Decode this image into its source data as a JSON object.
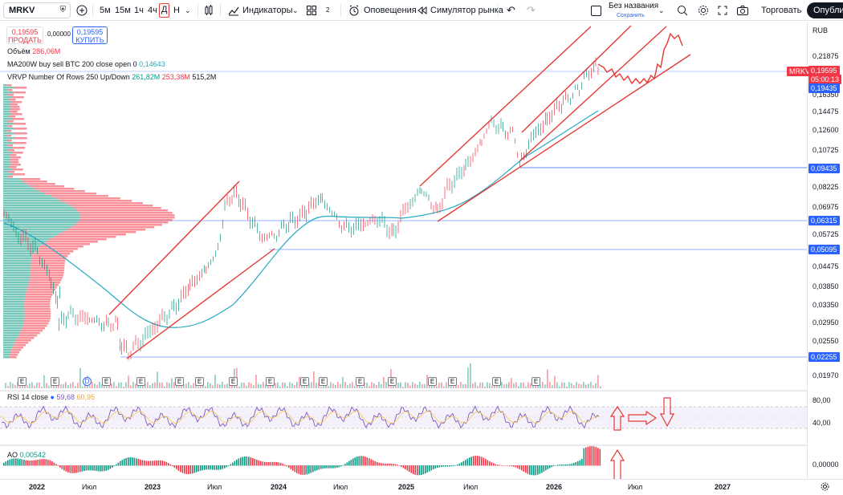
{
  "toolbar": {
    "symbol": "MRKV",
    "timeframes": [
      "5м",
      "15м",
      "1ч",
      "4ч",
      "Д",
      "Н"
    ],
    "active_timeframe": "Д",
    "indicators_label": "Индикаторы",
    "layout_count": "2",
    "alerts_label": "Оповещения",
    "replay_label": "Симулятор рынка",
    "layout_name": "Без названия",
    "layout_status": "Сохранить",
    "trade_label": "Торговать",
    "publish_label": "Опублик"
  },
  "quote": {
    "sell_price": "0,19595",
    "sell_label": "ПРОДАТЬ",
    "spread": "0,00000",
    "buy_price": "0,19595",
    "buy_label": "КУПИТЬ"
  },
  "legends": {
    "volume_label": "Объём",
    "volume_value": "286,06M",
    "ma_label": "MA200W buy sell BTC 200 close open 0",
    "ma_value": "0,14643",
    "vrvp_label": "VRVP Number Of Rows 250 Up/Down",
    "vrvp_up": "261,82M",
    "vrvp_down": "253,38M",
    "vrvp_total": "515,2M",
    "rsi_label": "RSI 14 close",
    "rsi_value": "59,68",
    "rsi_ma_value": "60,95",
    "ao_label": "AO",
    "ao_value": "0,00542"
  },
  "price_scale": {
    "currency": "RUB",
    "labels": [
      "0,21875",
      "0,18740",
      "0,16350",
      "0,14475",
      "0,12600",
      "0,10725",
      "0,08225",
      "0,06975",
      "0,05725",
      "0,04475",
      "0,03850",
      "0,03350",
      "0,02950",
      "0,02550",
      "0,01970"
    ],
    "symbol_tag": "MRKV",
    "last_price": "0,19595",
    "countdown": "05:00:13",
    "level_labels": [
      "0,19435",
      "0,09435",
      "0,06315",
      "0,05095",
      "0,02255"
    ],
    "rsi_labels": [
      "80,00",
      "40,00"
    ],
    "ao_label": "0,00000"
  },
  "time_axis": {
    "labels": [
      "2022",
      "Июл",
      "2023",
      "Июл",
      "2024",
      "Июл",
      "2025",
      "Июл",
      "2026",
      "Июл",
      "2027"
    ]
  },
  "markers": {
    "earnings": "E",
    "dividend": "D"
  },
  "colors": {
    "up": "#089981",
    "down": "#f23645",
    "ma": "#26a9c4",
    "trendline": "#e53935",
    "level": "#2962ff",
    "rsi": "#7e57c2",
    "rsi_ma": "#f2c94c",
    "dark": "#131722"
  }
}
